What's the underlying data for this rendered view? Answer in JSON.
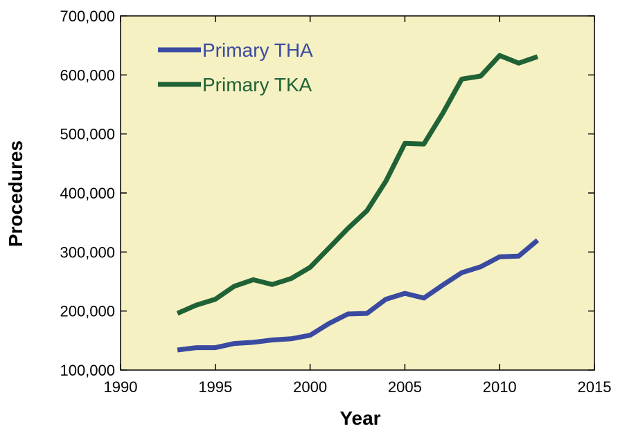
{
  "chart_data": {
    "type": "line",
    "title": "",
    "xlabel": "Year",
    "ylabel": "Procedures",
    "xlim": [
      1990,
      2015
    ],
    "ylim": [
      100000,
      700000
    ],
    "x_ticks": [
      1990,
      1995,
      2000,
      2005,
      2010,
      2015
    ],
    "y_ticks": [
      100000,
      200000,
      300000,
      400000,
      500000,
      600000,
      700000
    ],
    "x_tick_labels": [
      "1990",
      "1995",
      "2000",
      "2005",
      "2010",
      "2015"
    ],
    "y_tick_labels": [
      "100,000",
      "200,000",
      "300,000",
      "400,000",
      "500,000",
      "600,000",
      "700,000"
    ],
    "grid": false,
    "legend_position": "top-left",
    "background_color": "#f6f1c2",
    "x": [
      1993,
      1994,
      1995,
      1996,
      1997,
      1998,
      1999,
      2000,
      2001,
      2002,
      2003,
      2004,
      2005,
      2006,
      2007,
      2008,
      2009,
      2010,
      2011,
      2012
    ],
    "series": [
      {
        "name": "Primary THA",
        "color": "#3a4aa0",
        "values": [
          134000,
          138000,
          138000,
          145000,
          147000,
          151000,
          153000,
          159000,
          179000,
          195000,
          196000,
          220000,
          230000,
          222000,
          244000,
          265000,
          275000,
          292000,
          293000,
          320000
        ]
      },
      {
        "name": "Primary TKA",
        "color": "#1f6236",
        "values": [
          196000,
          210000,
          220000,
          242000,
          253000,
          245000,
          255000,
          274000,
          307000,
          340000,
          370000,
          420000,
          484000,
          483000,
          535000,
          593000,
          598000,
          633000,
          620000,
          631000
        ]
      }
    ]
  }
}
